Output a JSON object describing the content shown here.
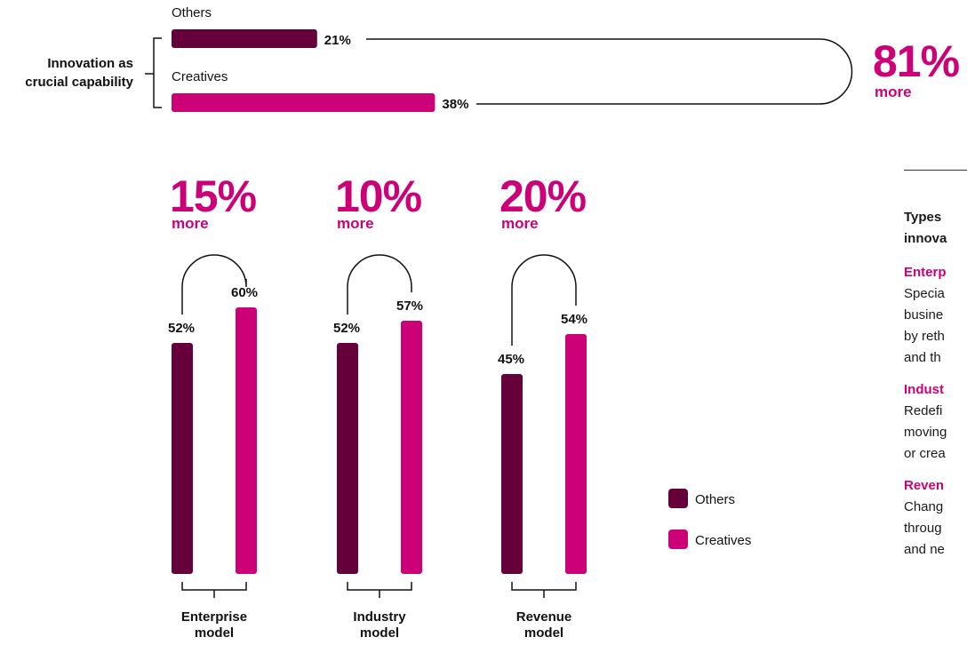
{
  "colors": {
    "others": "#66003a",
    "creatives": "#cc0077",
    "line": "#111111"
  },
  "chart_data": [
    {
      "type": "bar",
      "orientation": "horizontal",
      "category": "Innovation as crucial capability",
      "series": [
        {
          "name": "Others",
          "value": 21,
          "label": "21%"
        },
        {
          "name": "Creatives",
          "value": 38,
          "label": "38%"
        }
      ],
      "difference": {
        "value": "81%",
        "word": "more"
      }
    },
    {
      "type": "bar",
      "categories": [
        "Enterprise model",
        "Industry model",
        "Revenue model"
      ],
      "series": [
        {
          "name": "Others",
          "values": [
            52,
            52,
            45
          ],
          "labels": [
            "52%",
            "52%",
            "45%"
          ]
        },
        {
          "name": "Creatives",
          "values": [
            60,
            57,
            54
          ],
          "labels": [
            "60%",
            "57%",
            "54%"
          ]
        }
      ],
      "differences": [
        {
          "value": "15%",
          "word": "more"
        },
        {
          "value": "10%",
          "word": "more"
        },
        {
          "value": "20%",
          "word": "more"
        }
      ],
      "category_labels": [
        [
          "Enterprise",
          "model"
        ],
        [
          "Industry",
          "model"
        ],
        [
          "Revenue",
          "model"
        ]
      ],
      "legend": [
        "Others",
        "Creatives"
      ]
    }
  ],
  "top_labels": {
    "row_title": [
      "Innovation as",
      "crucial capability"
    ],
    "others": "Others",
    "creatives": "Creatives"
  },
  "sidebar": {
    "heading": [
      "Types",
      "innova"
    ],
    "items": [
      {
        "term": "Enterp",
        "lines": [
          "Specia",
          "busine",
          "by reth",
          "and th"
        ]
      },
      {
        "term": "Indust",
        "lines": [
          "Redefi",
          "moving",
          "or crea"
        ]
      },
      {
        "term": "Reven",
        "lines": [
          "Chang",
          "throug",
          "and ne"
        ]
      }
    ]
  }
}
